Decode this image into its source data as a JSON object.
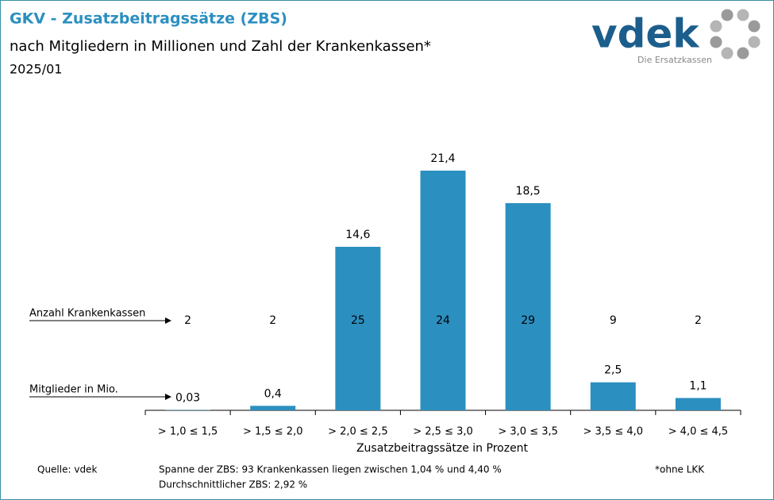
{
  "chart_data": {
    "type": "bar",
    "title": "GKV - Zusatzbeitragssätze (ZBS)",
    "subtitle": "nach Mitgliedern in Millionen und Zahl der Krankenkassen*",
    "period": "2025/01",
    "categories": [
      "> 1,0 ≤ 1,5",
      "> 1,5 ≤ 2,0",
      "> 2,0 ≤ 2,5",
      "> 2,5 ≤ 3,0",
      "> 3,0 ≤ 3,5",
      "> 3,5 ≤ 4,0",
      "> 4,0 ≤ 4,5"
    ],
    "values": [
      0.03,
      0.4,
      14.6,
      21.4,
      18.5,
      2.5,
      1.1
    ],
    "value_labels": [
      "0,03",
      "0,4",
      "14,6",
      "21,4",
      "18,5",
      "2,5",
      "1,1"
    ],
    "fund_counts": [
      2,
      2,
      25,
      24,
      29,
      9,
      2
    ],
    "color": "#2b8fc0",
    "xlabel": "Zusatzbeitragssätze in Prozent",
    "row_labels": {
      "funds": "Anzahl Krankenkassen",
      "members": "Mitglieder in Mio."
    },
    "notes": {
      "source": "Quelle: vdek",
      "range": "Spanne der ZBS: 93 Krankenkassen liegen zwischen 1,04 % und 4,40 %",
      "average": "Durchschnittlicher ZBS: 2,92 %",
      "footnote": "*ohne LKK"
    }
  },
  "logo": {
    "name": "vdek",
    "tagline": "Die Ersatzkassen"
  }
}
